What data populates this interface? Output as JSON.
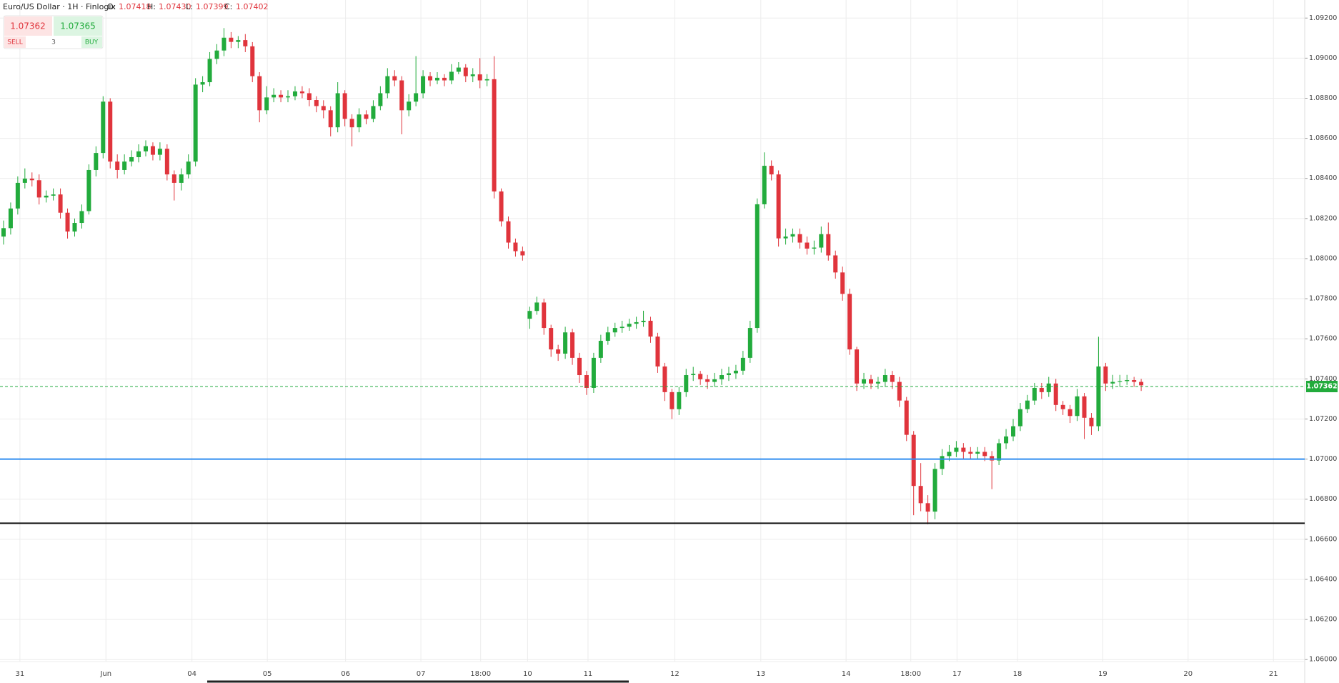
{
  "chart_data": {
    "type": "candlestick",
    "title": "Euro/US Dollar · 1H · Finlogix",
    "ohlc_header": {
      "labels": [
        "O:",
        "H:",
        "L:",
        "C:"
      ],
      "values": [
        "1.07418",
        "1.07430",
        "1.07399",
        "1.07402"
      ]
    },
    "trade_panel": {
      "sell_price": "1.07362",
      "buy_price": "1.07365",
      "sell_label": "SELL",
      "quantity": "3",
      "buy_label": "BUY"
    },
    "up_color": "#22ab3c",
    "down_color": "#e0343c",
    "x": [
      0,
      1,
      2,
      3,
      4,
      5,
      6,
      7,
      8,
      9,
      10,
      11,
      12,
      13,
      14,
      15,
      16,
      17,
      18,
      19,
      20,
      21,
      22,
      23,
      24,
      25,
      26,
      27,
      28,
      29,
      30,
      31,
      32,
      33,
      34,
      35,
      36,
      37,
      38,
      39,
      40,
      41,
      42,
      43,
      44,
      45,
      46,
      47,
      48,
      49,
      50,
      51,
      52,
      53,
      54,
      55,
      56,
      57,
      58,
      59,
      60,
      61,
      62,
      63,
      64,
      65,
      66,
      67,
      68,
      69,
      70,
      71,
      72,
      73,
      74,
      75,
      76,
      77,
      78,
      79,
      80,
      81,
      82,
      83,
      84,
      85,
      86,
      87,
      88,
      89,
      90,
      91,
      92,
      93,
      94,
      95,
      96,
      97,
      98,
      99,
      100,
      101,
      102,
      103,
      104,
      105,
      106,
      107,
      108,
      109,
      110,
      111,
      112,
      113,
      114,
      115,
      116,
      117,
      118,
      119,
      120,
      121,
      122,
      123,
      124,
      125,
      126,
      127,
      128,
      129,
      130,
      131,
      132,
      133,
      134,
      135,
      136,
      137,
      138,
      139,
      140,
      141,
      142,
      143,
      144,
      145,
      146,
      147,
      148,
      149,
      150,
      151,
      152,
      153,
      154,
      155,
      156,
      157,
      158,
      159,
      160
    ],
    "open": [
      1.0811,
      1.08152,
      1.0825,
      1.08378,
      1.08399,
      1.08391,
      1.08305,
      1.08314,
      1.0832,
      1.08229,
      1.08135,
      1.08178,
      1.08237,
      1.08442,
      1.08527,
      1.08783,
      1.08484,
      1.08442,
      1.08484,
      1.08506,
      1.08535,
      1.08561,
      1.08518,
      1.08548,
      1.0842,
      1.08378,
      1.0842,
      1.08484,
      1.08868,
      1.0888,
      1.08996,
      1.09038,
      1.09102,
      1.09081,
      1.0909,
      1.09059,
      1.0891,
      1.0874,
      1.08804,
      1.08817,
      1.08804,
      1.0881,
      1.08834,
      1.08825,
      1.08791,
      1.08761,
      1.0874,
      1.08655,
      1.08825,
      1.08697,
      1.08655,
      1.08719,
      1.08697,
      1.08761,
      1.08825,
      1.0891,
      1.08889,
      1.0874,
      1.08783,
      1.08825,
      1.0891,
      1.08889,
      1.08902,
      1.08889,
      1.08932,
      1.08953,
      1.0891,
      1.08919,
      1.08889,
      1.08895,
      1.08335,
      1.08186,
      1.0808,
      1.08037,
      1.077,
      1.07739,
      1.07781,
      1.07654,
      1.07547,
      1.07526,
      1.07632,
      1.07505,
      1.07419,
      1.07355,
      1.07505,
      1.0759,
      1.07632,
      1.07654,
      1.0766,
      1.07675,
      1.07683,
      1.0769,
      1.07611,
      1.07462,
      1.07334,
      1.07249,
      1.07334,
      1.07419,
      1.07425,
      1.07398,
      1.07385,
      1.07398,
      1.07419,
      1.07428,
      1.07441,
      1.07505,
      1.07654,
      1.08271,
      1.08463,
      1.0842,
      1.08101,
      1.0811,
      1.08122,
      1.0808,
      1.0805,
      1.08055,
      1.08122,
      1.08016,
      1.07931,
      1.07824,
      1.07547,
      1.07377,
      1.07398,
      1.07377,
      1.07385,
      1.07419,
      1.07385,
      1.07292,
      1.07121,
      1.06866,
      1.0678,
      1.06738,
      1.06951,
      1.07015,
      1.07036,
      1.07057,
      1.07036,
      1.07027,
      1.07036,
      1.07015,
      1.06993,
      1.07079,
      1.07113,
      1.07164,
      1.07249,
      1.07292,
      1.07355,
      1.07334,
      1.07377,
      1.0727,
      1.07249,
      1.07215,
      1.07313,
      1.07206,
      1.07164,
      1.07462,
      1.07377,
      1.07385,
      1.07389,
      1.07394,
      1.07385
    ],
    "high": [
      1.0819,
      1.0828,
      1.0841,
      1.0845,
      1.0843,
      1.0842,
      1.0834,
      1.0835,
      1.0835,
      1.0825,
      1.082,
      1.0827,
      1.0847,
      1.0856,
      1.0881,
      1.088,
      1.0852,
      1.0852,
      1.0854,
      1.0857,
      1.0859,
      1.0858,
      1.0858,
      1.0857,
      1.0844,
      1.0845,
      1.0852,
      1.089,
      1.0891,
      1.0903,
      1.0907,
      1.0915,
      1.0913,
      1.0911,
      1.0912,
      1.0908,
      1.0893,
      1.0886,
      1.0885,
      1.0884,
      1.0884,
      1.0886,
      1.0886,
      1.0885,
      1.0881,
      1.0879,
      1.0876,
      1.0888,
      1.0884,
      1.0872,
      1.0875,
      1.0874,
      1.0879,
      1.0886,
      1.0895,
      1.0894,
      1.0891,
      1.0882,
      1.0901,
      1.0894,
      1.0893,
      1.0893,
      1.0892,
      1.0897,
      1.0898,
      1.0897,
      1.0895,
      1.09,
      1.0892,
      1.0901,
      1.0835,
      1.0821,
      1.081,
      1.0806,
      1.0776,
      1.0781,
      1.078,
      1.0767,
      1.0757,
      1.0766,
      1.0765,
      1.0753,
      1.0744,
      1.0753,
      1.0762,
      1.0766,
      1.0768,
      1.0769,
      1.077,
      1.0771,
      1.0774,
      1.0771,
      1.0763,
      1.0748,
      1.0735,
      1.0736,
      1.0745,
      1.0746,
      1.0744,
      1.0742,
      1.0743,
      1.0745,
      1.0746,
      1.0747,
      1.0754,
      1.0769,
      1.083,
      1.0853,
      1.0849,
      1.0844,
      1.0815,
      1.0815,
      1.0815,
      1.0811,
      1.0809,
      1.0816,
      1.0818,
      1.0804,
      1.0796,
      1.0785,
      1.0756,
      1.0743,
      1.0742,
      1.0741,
      1.0745,
      1.0744,
      1.0741,
      1.0731,
      1.0714,
      1.0698,
      1.0682,
      1.0698,
      1.0705,
      1.0707,
      1.0709,
      1.0708,
      1.0706,
      1.0706,
      1.0706,
      1.0704,
      1.071,
      1.0715,
      1.072,
      1.0728,
      1.0732,
      1.0738,
      1.0738,
      1.0741,
      1.074,
      1.0729,
      1.0727,
      1.0735,
      1.0733,
      1.0723,
      1.0761,
      1.0748,
      1.0742,
      1.0742,
      1.0742,
      1.0741,
      1.074
    ],
    "low": [
      1.0807,
      1.0812,
      1.0822,
      1.0835,
      1.0836,
      1.0827,
      1.0828,
      1.0829,
      1.082,
      1.081,
      1.0811,
      1.0815,
      1.0822,
      1.0841,
      1.085,
      1.0845,
      1.084,
      1.0842,
      1.0846,
      1.0848,
      1.0851,
      1.0849,
      1.0849,
      1.0839,
      1.0829,
      1.0834,
      1.084,
      1.0846,
      1.0883,
      1.0886,
      1.0897,
      1.0901,
      1.0905,
      1.0905,
      1.0903,
      1.0888,
      1.0868,
      1.0872,
      1.0878,
      1.0878,
      1.0878,
      1.0879,
      1.088,
      1.0876,
      1.0873,
      1.087,
      1.0861,
      1.0863,
      1.0866,
      1.0856,
      1.0863,
      1.0867,
      1.0868,
      1.0874,
      1.088,
      1.0886,
      1.0862,
      1.0871,
      1.0876,
      1.088,
      1.0886,
      1.0887,
      1.0886,
      1.0887,
      1.0892,
      1.0888,
      1.0888,
      1.0885,
      1.0886,
      1.083,
      1.0816,
      1.0805,
      1.0801,
      1.0799,
      1.0765,
      1.0772,
      1.0762,
      1.0751,
      1.0749,
      1.075,
      1.0747,
      1.0738,
      1.0732,
      1.0733,
      1.0748,
      1.0757,
      1.0761,
      1.0763,
      1.0764,
      1.0765,
      1.0766,
      1.0758,
      1.0743,
      1.0729,
      1.072,
      1.0722,
      1.0731,
      1.0739,
      1.0737,
      1.0735,
      1.0736,
      1.0737,
      1.0739,
      1.074,
      1.0742,
      1.0748,
      1.0763,
      1.0825,
      1.0839,
      1.0806,
      1.0807,
      1.0808,
      1.0805,
      1.0802,
      1.0802,
      1.0803,
      1.0799,
      1.079,
      1.0779,
      1.0752,
      1.0734,
      1.0735,
      1.0735,
      1.0735,
      1.0736,
      1.0735,
      1.0726,
      1.0709,
      1.0672,
      1.0674,
      1.06675,
      1.067,
      1.0692,
      1.0699,
      1.0701,
      1.07,
      1.07,
      1.07,
      1.0699,
      1.0685,
      1.0697,
      1.0705,
      1.0709,
      1.0714,
      1.0723,
      1.0727,
      1.073,
      1.0731,
      1.0724,
      1.0722,
      1.0718,
      1.0719,
      1.071,
      1.0712,
      1.0714,
      1.0734,
      1.0735,
      1.0736,
      1.0737,
      1.0736,
      1.0734
    ],
    "close": [
      1.08152,
      1.0825,
      1.08378,
      1.08399,
      1.08391,
      1.08305,
      1.08314,
      1.0832,
      1.08229,
      1.08135,
      1.08178,
      1.08237,
      1.08442,
      1.08527,
      1.08783,
      1.08484,
      1.08442,
      1.08484,
      1.08506,
      1.08535,
      1.08561,
      1.08518,
      1.08548,
      1.0842,
      1.08378,
      1.0842,
      1.08484,
      1.08868,
      1.0888,
      1.08996,
      1.09038,
      1.09102,
      1.09081,
      1.0909,
      1.09059,
      1.0891,
      1.0874,
      1.08804,
      1.08817,
      1.08804,
      1.0881,
      1.08834,
      1.08825,
      1.08791,
      1.08761,
      1.0874,
      1.08655,
      1.08825,
      1.08697,
      1.08655,
      1.08719,
      1.08697,
      1.08761,
      1.08825,
      1.0891,
      1.08889,
      1.0874,
      1.08783,
      1.08825,
      1.0891,
      1.08889,
      1.08902,
      1.08889,
      1.08932,
      1.08953,
      1.0891,
      1.08919,
      1.08889,
      1.08895,
      1.08335,
      1.08186,
      1.0808,
      1.08037,
      1.08016,
      1.07739,
      1.07781,
      1.07654,
      1.07547,
      1.07526,
      1.07632,
      1.07505,
      1.07419,
      1.07355,
      1.07505,
      1.0759,
      1.07632,
      1.07654,
      1.0766,
      1.07675,
      1.07683,
      1.0769,
      1.07611,
      1.07462,
      1.07334,
      1.07249,
      1.07334,
      1.07419,
      1.07425,
      1.07398,
      1.07385,
      1.07398,
      1.07419,
      1.07428,
      1.07441,
      1.07505,
      1.07654,
      1.08271,
      1.08463,
      1.0842,
      1.08101,
      1.0811,
      1.08122,
      1.0808,
      1.0805,
      1.08055,
      1.08122,
      1.08016,
      1.07931,
      1.07824,
      1.07547,
      1.07377,
      1.07398,
      1.07377,
      1.07385,
      1.07419,
      1.07385,
      1.07292,
      1.07121,
      1.06866,
      1.0678,
      1.06738,
      1.06951,
      1.07015,
      1.07036,
      1.07057,
      1.07036,
      1.07027,
      1.07036,
      1.07015,
      1.06993,
      1.07079,
      1.07113,
      1.07164,
      1.07249,
      1.07292,
      1.07355,
      1.07334,
      1.07377,
      1.0727,
      1.07249,
      1.07215,
      1.07313,
      1.07206,
      1.07164,
      1.07462,
      1.07377,
      1.07385,
      1.07389,
      1.07394,
      1.07385,
      1.07368
    ],
    "xlim": [
      -0.5,
      183
    ],
    "xticks": [
      {
        "value": 2.3,
        "label": "31"
      },
      {
        "value": 14.4,
        "label": "Jun"
      },
      {
        "value": 26.5,
        "label": "04"
      },
      {
        "value": 37.1,
        "label": "05"
      },
      {
        "value": 48.1,
        "label": "06"
      },
      {
        "value": 58.7,
        "label": "07"
      },
      {
        "value": 67.1,
        "label": "18:00"
      },
      {
        "value": 73.7,
        "label": "10"
      },
      {
        "value": 82.2,
        "label": "11"
      },
      {
        "value": 94.4,
        "label": "12"
      },
      {
        "value": 106.5,
        "label": "13"
      },
      {
        "value": 118.5,
        "label": "14"
      },
      {
        "value": 127.6,
        "label": "18:00"
      },
      {
        "value": 134.1,
        "label": "17"
      },
      {
        "value": 142.6,
        "label": "18"
      },
      {
        "value": 154.6,
        "label": "19"
      },
      {
        "value": 166.6,
        "label": "20"
      },
      {
        "value": 178.6,
        "label": "21"
      }
    ],
    "ylim": [
      1.0599,
      1.0929
    ],
    "yticks": [
      {
        "value": 1.06,
        "label": "1.06000"
      },
      {
        "value": 1.062,
        "label": "1.06200"
      },
      {
        "value": 1.064,
        "label": "1.06400"
      },
      {
        "value": 1.066,
        "label": "1.06600"
      },
      {
        "value": 1.068,
        "label": "1.06800"
      },
      {
        "value": 1.07,
        "label": "1.07000"
      },
      {
        "value": 1.072,
        "label": "1.07200"
      },
      {
        "value": 1.074,
        "label": "1.07400"
      },
      {
        "value": 1.076,
        "label": "1.07600"
      },
      {
        "value": 1.078,
        "label": "1.07800"
      },
      {
        "value": 1.08,
        "label": "1.08000"
      },
      {
        "value": 1.082,
        "label": "1.08200"
      },
      {
        "value": 1.084,
        "label": "1.08400"
      },
      {
        "value": 1.086,
        "label": "1.08600"
      },
      {
        "value": 1.088,
        "label": "1.08800"
      },
      {
        "value": 1.09,
        "label": "1.09000"
      },
      {
        "value": 1.092,
        "label": "1.09200"
      }
    ],
    "grid": true,
    "horizontal_lines": [
      {
        "value": 1.07,
        "color": "#2f8cf0"
      },
      {
        "value": 1.0668,
        "color": "#111111"
      }
    ],
    "price_line": {
      "value": 1.07362,
      "color": "#22ab3c"
    }
  }
}
